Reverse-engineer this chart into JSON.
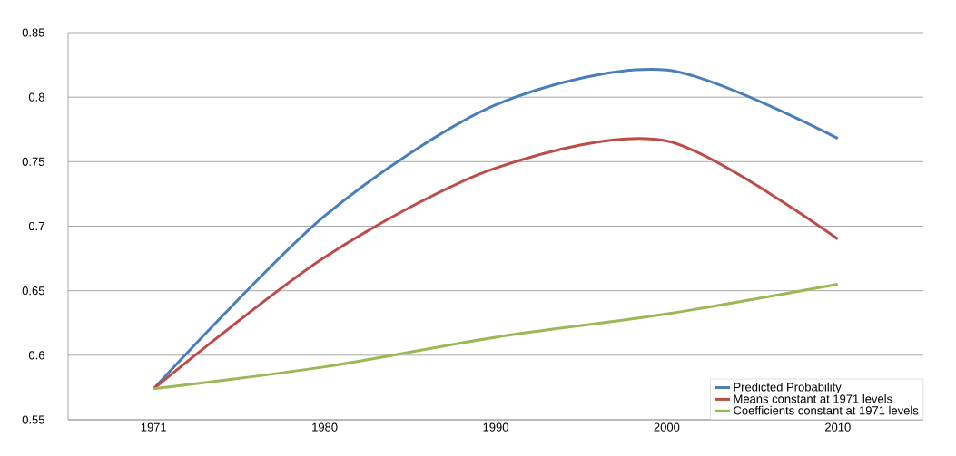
{
  "chart_data": {
    "type": "line",
    "categories": [
      "1971",
      "1980",
      "1990",
      "2000",
      "2010"
    ],
    "series": [
      {
        "name": "Predicted Probability",
        "color": "#4a7ebb",
        "values": [
          0.574,
          0.708,
          0.794,
          0.821,
          0.768
        ]
      },
      {
        "name": "Means constant at 1971 levels",
        "color": "#be4b48",
        "values": [
          0.574,
          0.676,
          0.745,
          0.766,
          0.69
        ]
      },
      {
        "name": "Coefficients constant at 1971 levels",
        "color": "#98b954",
        "values": [
          0.574,
          0.591,
          0.614,
          0.632,
          0.655
        ]
      }
    ],
    "ylim": [
      0.55,
      0.85
    ],
    "yticks": [
      0.55,
      0.6,
      0.65,
      0.7,
      0.75,
      0.8,
      0.85
    ],
    "grid": "y",
    "legend": "bottom right",
    "marker": "none",
    "line_style": "solid"
  }
}
